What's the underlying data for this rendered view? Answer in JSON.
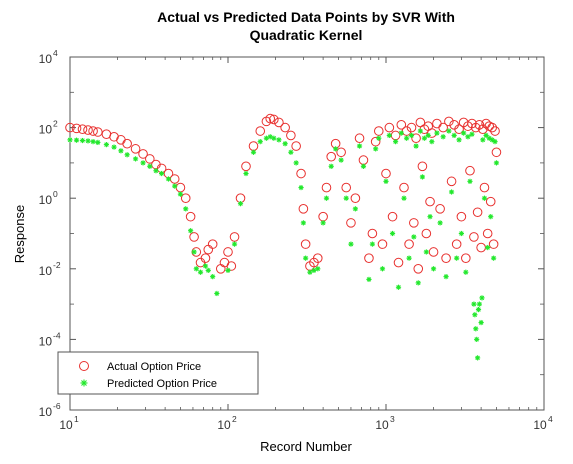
{
  "chart_data": {
    "type": "scatter",
    "title": [
      "Actual vs Predicted Data Points by SVR With",
      "Quadratic Kernel"
    ],
    "xlabel": "Record Number",
    "ylabel": "Response",
    "xscale": "log",
    "yscale": "log",
    "xlim": [
      10,
      10000
    ],
    "ylim": [
      1e-06,
      10000
    ],
    "x_ticks": [
      {
        "base": "10",
        "exp": "1"
      },
      {
        "base": "10",
        "exp": "2"
      },
      {
        "base": "10",
        "exp": "3"
      },
      {
        "base": "10",
        "exp": "4"
      }
    ],
    "y_ticks": [
      {
        "base": "10",
        "exp": "-6"
      },
      {
        "base": "10",
        "exp": "-4"
      },
      {
        "base": "10",
        "exp": "-2"
      },
      {
        "base": "10",
        "exp": "0"
      },
      {
        "base": "10",
        "exp": "2"
      },
      {
        "base": "10",
        "exp": "4"
      }
    ],
    "legend_position": "bottom-left",
    "grid": false,
    "series": [
      {
        "name": "Actual Option Price",
        "marker": "open-circle",
        "color": "#e8312f",
        "points": [
          [
            10,
            100
          ],
          [
            11,
            95
          ],
          [
            12,
            90
          ],
          [
            13,
            85
          ],
          [
            14,
            80
          ],
          [
            15,
            75
          ],
          [
            17,
            65
          ],
          [
            19,
            55
          ],
          [
            21,
            45
          ],
          [
            23,
            35
          ],
          [
            26,
            25
          ],
          [
            29,
            18
          ],
          [
            32,
            13
          ],
          [
            35,
            9
          ],
          [
            38,
            7
          ],
          [
            42,
            5
          ],
          [
            46,
            3.5
          ],
          [
            50,
            2
          ],
          [
            54,
            1
          ],
          [
            58,
            0.3
          ],
          [
            61,
            0.08
          ],
          [
            63,
            0.03
          ],
          [
            67,
            0.015
          ],
          [
            72,
            0.02
          ],
          [
            75,
            0.035
          ],
          [
            80,
            0.05
          ],
          [
            90,
            0.01
          ],
          [
            95,
            0.015
          ],
          [
            100,
            0.03
          ],
          [
            105,
            0.012
          ],
          [
            110,
            0.08
          ],
          [
            120,
            1
          ],
          [
            130,
            8
          ],
          [
            145,
            30
          ],
          [
            160,
            80
          ],
          [
            175,
            150
          ],
          [
            185,
            180
          ],
          [
            195,
            170
          ],
          [
            210,
            140
          ],
          [
            230,
            100
          ],
          [
            250,
            60
          ],
          [
            270,
            30
          ],
          [
            290,
            5
          ],
          [
            300,
            0.5
          ],
          [
            310,
            0.05
          ],
          [
            330,
            0.012
          ],
          [
            350,
            0.015
          ],
          [
            370,
            0.02
          ],
          [
            400,
            0.3
          ],
          [
            420,
            2
          ],
          [
            450,
            15
          ],
          [
            480,
            35
          ],
          [
            520,
            20
          ],
          [
            560,
            2
          ],
          [
            600,
            0.2
          ],
          [
            640,
            1
          ],
          [
            680,
            50
          ],
          [
            720,
            12
          ],
          [
            780,
            0.02
          ],
          [
            820,
            0.1
          ],
          [
            860,
            40
          ],
          [
            900,
            80
          ],
          [
            950,
            0.05
          ],
          [
            1000,
            5
          ],
          [
            1050,
            100
          ],
          [
            1100,
            0.3
          ],
          [
            1150,
            60
          ],
          [
            1200,
            0.015
          ],
          [
            1250,
            120
          ],
          [
            1300,
            2
          ],
          [
            1350,
            80
          ],
          [
            1400,
            0.05
          ],
          [
            1450,
            100
          ],
          [
            1500,
            0.2
          ],
          [
            1550,
            50
          ],
          [
            1600,
            0.01
          ],
          [
            1650,
            140
          ],
          [
            1700,
            8
          ],
          [
            1750,
            90
          ],
          [
            1800,
            0.1
          ],
          [
            1850,
            110
          ],
          [
            1900,
            0.8
          ],
          [
            1950,
            70
          ],
          [
            2000,
            0.03
          ],
          [
            2100,
            130
          ],
          [
            2200,
            0.5
          ],
          [
            2300,
            100
          ],
          [
            2400,
            0.02
          ],
          [
            2500,
            150
          ],
          [
            2600,
            3
          ],
          [
            2700,
            120
          ],
          [
            2800,
            0.05
          ],
          [
            2900,
            90
          ],
          [
            3000,
            0.3
          ],
          [
            3100,
            140
          ],
          [
            3200,
            0.02
          ],
          [
            3300,
            110
          ],
          [
            3400,
            6
          ],
          [
            3500,
            130
          ],
          [
            3600,
            0.08
          ],
          [
            3700,
            100
          ],
          [
            3800,
            0.4
          ],
          [
            3900,
            120
          ],
          [
            4000,
            0.04
          ],
          [
            4100,
            90
          ],
          [
            4200,
            2
          ],
          [
            4300,
            130
          ],
          [
            4400,
            0.1
          ],
          [
            4500,
            110
          ],
          [
            4600,
            0.8
          ],
          [
            4700,
            100
          ],
          [
            4800,
            0.05
          ],
          [
            4900,
            80
          ],
          [
            5000,
            20
          ]
        ]
      },
      {
        "name": "Predicted Option Price",
        "marker": "asterisk",
        "color": "#22e82c",
        "points": [
          [
            10,
            45
          ],
          [
            11,
            44
          ],
          [
            12,
            43
          ],
          [
            13,
            42
          ],
          [
            14,
            40
          ],
          [
            15,
            38
          ],
          [
            17,
            33
          ],
          [
            19,
            28
          ],
          [
            21,
            22
          ],
          [
            23,
            17
          ],
          [
            26,
            13
          ],
          [
            29,
            10
          ],
          [
            32,
            8
          ],
          [
            35,
            6
          ],
          [
            38,
            5
          ],
          [
            42,
            3.5
          ],
          [
            46,
            2.2
          ],
          [
            50,
            1.3
          ],
          [
            54,
            0.5
          ],
          [
            58,
            0.12
          ],
          [
            61,
            0.03
          ],
          [
            63,
            0.01
          ],
          [
            67,
            0.008
          ],
          [
            72,
            0.012
          ],
          [
            75,
            0.009
          ],
          [
            80,
            0.006
          ],
          [
            85,
            0.002
          ],
          [
            100,
            0.009
          ],
          [
            110,
            0.05
          ],
          [
            120,
            0.7
          ],
          [
            130,
            5
          ],
          [
            145,
            20
          ],
          [
            160,
            40
          ],
          [
            175,
            50
          ],
          [
            185,
            55
          ],
          [
            195,
            50
          ],
          [
            210,
            45
          ],
          [
            230,
            35
          ],
          [
            250,
            20
          ],
          [
            270,
            10
          ],
          [
            290,
            2
          ],
          [
            300,
            0.2
          ],
          [
            310,
            0.02
          ],
          [
            330,
            0.008
          ],
          [
            350,
            0.009
          ],
          [
            370,
            0.01
          ],
          [
            400,
            0.2
          ],
          [
            420,
            1
          ],
          [
            450,
            8
          ],
          [
            480,
            25
          ],
          [
            520,
            12
          ],
          [
            560,
            1
          ],
          [
            600,
            0.05
          ],
          [
            640,
            0.5
          ],
          [
            680,
            30
          ],
          [
            720,
            8
          ],
          [
            780,
            0.005
          ],
          [
            820,
            0.05
          ],
          [
            860,
            25
          ],
          [
            900,
            50
          ],
          [
            950,
            0.01
          ],
          [
            1000,
            3
          ],
          [
            1050,
            60
          ],
          [
            1100,
            0.1
          ],
          [
            1150,
            40
          ],
          [
            1200,
            0.003
          ],
          [
            1250,
            70
          ],
          [
            1300,
            1
          ],
          [
            1350,
            50
          ],
          [
            1400,
            0.02
          ],
          [
            1450,
            60
          ],
          [
            1500,
            0.08
          ],
          [
            1550,
            30
          ],
          [
            1600,
            0.004
          ],
          [
            1650,
            80
          ],
          [
            1700,
            4
          ],
          [
            1750,
            50
          ],
          [
            1800,
            0.03
          ],
          [
            1850,
            60
          ],
          [
            1900,
            0.3
          ],
          [
            1950,
            40
          ],
          [
            2000,
            0.01
          ],
          [
            2100,
            70
          ],
          [
            2200,
            0.2
          ],
          [
            2300,
            55
          ],
          [
            2400,
            0.006
          ],
          [
            2500,
            80
          ],
          [
            2600,
            1.5
          ],
          [
            2700,
            60
          ],
          [
            2800,
            0.02
          ],
          [
            2900,
            45
          ],
          [
            3000,
            0.1
          ],
          [
            3100,
            70
          ],
          [
            3200,
            0.008
          ],
          [
            3300,
            55
          ],
          [
            3400,
            3
          ],
          [
            3500,
            65
          ],
          [
            3600,
            0.001
          ],
          [
            3650,
            0.0005
          ],
          [
            3700,
            0.0002
          ],
          [
            3750,
            0.0001
          ],
          [
            3800,
            3e-05
          ],
          [
            3850,
            0.0007
          ],
          [
            3900,
            0.001
          ],
          [
            4000,
            0.0003
          ],
          [
            4050,
            0.0015
          ],
          [
            4100,
            45
          ],
          [
            4200,
            1
          ],
          [
            4300,
            60
          ],
          [
            4400,
            0.04
          ],
          [
            4500,
            50
          ],
          [
            4600,
            0.3
          ],
          [
            4700,
            45
          ],
          [
            4800,
            0.02
          ],
          [
            4900,
            40
          ],
          [
            5000,
            10
          ]
        ]
      }
    ]
  }
}
